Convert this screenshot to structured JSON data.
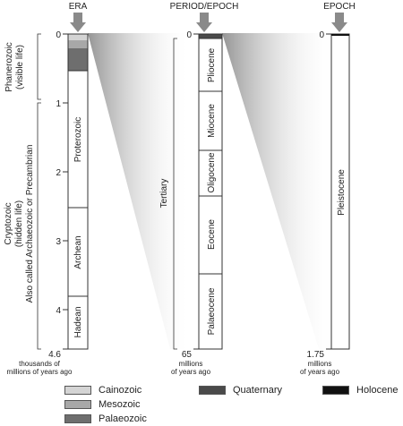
{
  "headers": {
    "era": "ERA",
    "period_epoch": "PERIOD/EPOCH",
    "epoch": "EPOCH"
  },
  "era_column": {
    "ticks": [
      "0",
      "1",
      "2",
      "3",
      "4",
      "4.6"
    ],
    "unit_label_1": "thousands of",
    "unit_label_2": "millions of years ago",
    "segments": [
      "Proterozoic",
      "Archean",
      "Hadean"
    ],
    "eon_phanerozoic_1": "Phanerozoic",
    "eon_phanerozoic_2": "(visible life)",
    "eon_cryptozoic_1": "Cryptozoic",
    "eon_cryptozoic_2": "(hidden life)",
    "eon_cryptozoic_3": "Also called Archaeozoic or Precambrian"
  },
  "period_column": {
    "ticks": [
      "0",
      "65"
    ],
    "unit_label_1": "millions",
    "unit_label_2": "of years ago",
    "group_label": "Tertiary",
    "segments": [
      "Pliocene",
      "Miocene",
      "Oligocene",
      "Eocene",
      "Palaeocene"
    ]
  },
  "epoch_column": {
    "ticks": [
      "0",
      "1.75"
    ],
    "unit_label_1": "millions",
    "unit_label_2": "of years ago",
    "segments": [
      "Pleistocene"
    ]
  },
  "legend": [
    {
      "label": "Cainozoic",
      "color": "#d4d4d4"
    },
    {
      "label": "Mesozoic",
      "color": "#a8a8a8"
    },
    {
      "label": "Palaeozoic",
      "color": "#6e6e6e"
    },
    {
      "label": "Quaternary",
      "color": "#4a4a4a"
    },
    {
      "label": "Holocene",
      "color": "#111111"
    }
  ],
  "colors": {
    "arrow": "#8a8a8a",
    "wedge_dark": "#9a9a9a"
  }
}
